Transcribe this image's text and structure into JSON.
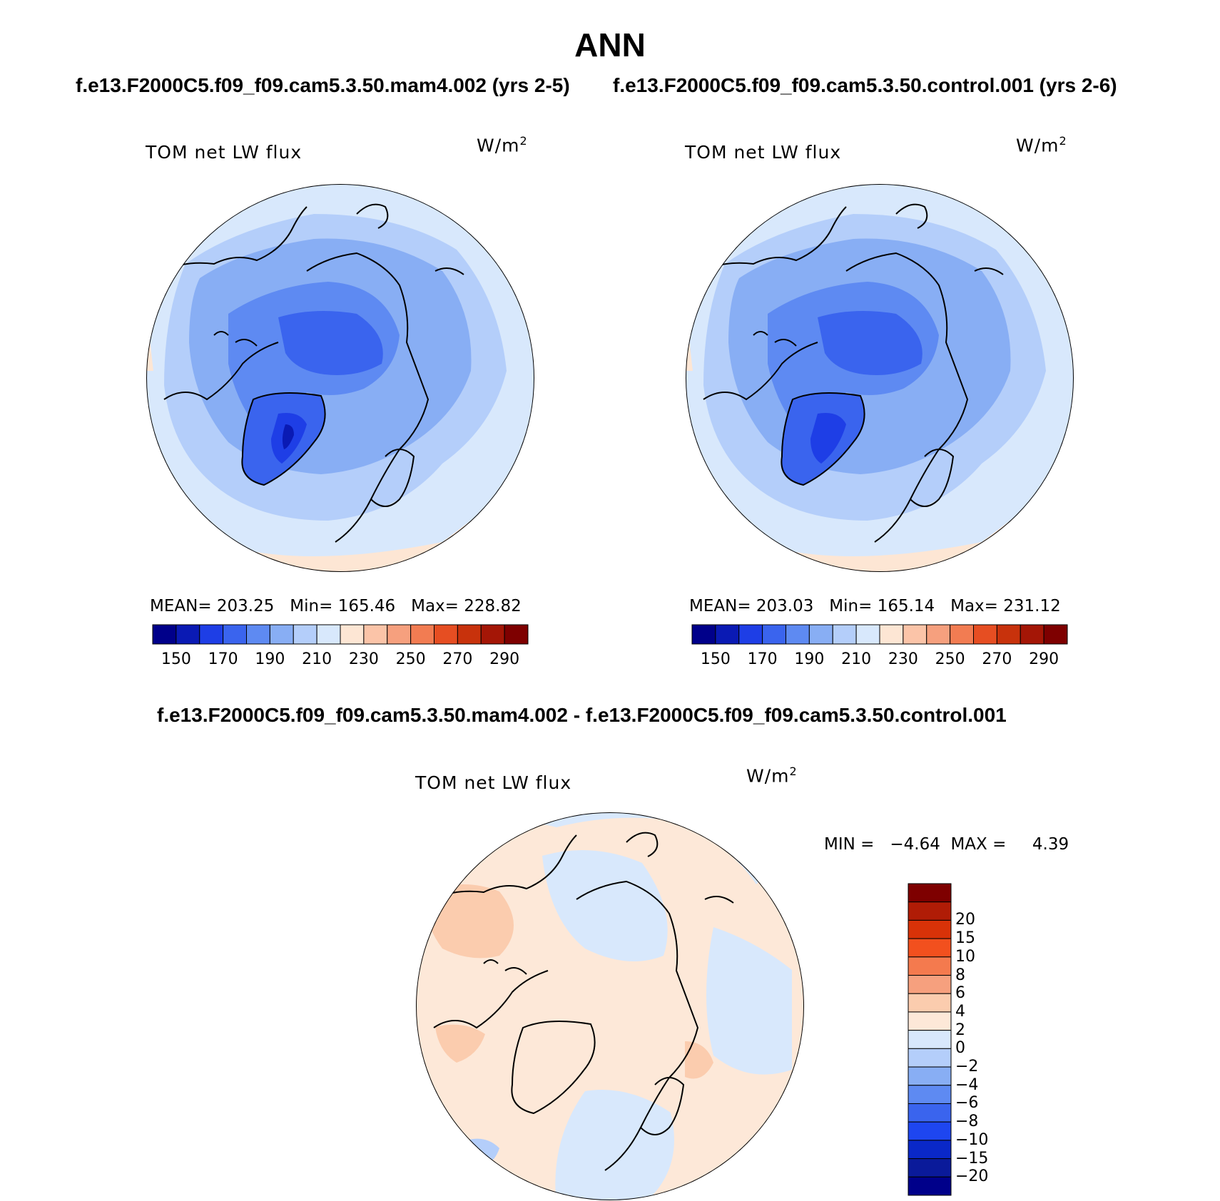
{
  "header": {
    "title": "ANN",
    "subtitle_left": "f.e13.F2000C5.f09_f09.cam5.3.50.mam4.002 (yrs 2-5)",
    "subtitle_right": "f.e13.F2000C5.f09_f09.cam5.3.50.control.001 (yrs 2-6)",
    "diff_title": "f.e13.F2000C5.f09_f09.cam5.3.50.mam4.002 - f.e13.F2000C5.f09_f09.cam5.3.50.control.001"
  },
  "panels": [
    {
      "variable": "TOM net LW flux",
      "units_base": "W/m",
      "units_exp": "2",
      "stats": "MEAN= 203.25   Min= 165.46   Max= 228.82"
    },
    {
      "variable": "TOM net LW flux",
      "units_base": "W/m",
      "units_exp": "2",
      "stats": "MEAN= 203.03   Min= 165.14   Max= 231.12"
    },
    {
      "variable": "TOM net LW flux",
      "units_base": "W/m",
      "units_exp": "2",
      "stats": "MIN =   −4.64  MAX =     4.39"
    }
  ],
  "colorbar_main": {
    "colors": [
      "#00008a",
      "#0a1ab4",
      "#1e3ee6",
      "#3a64ee",
      "#5e8af2",
      "#88aef4",
      "#b4cefa",
      "#d8e8fc",
      "#fde6d4",
      "#fbc4a8",
      "#f6a07e",
      "#f27c52",
      "#e64e22",
      "#c8320c",
      "#a41606",
      "#7e0000"
    ],
    "labels": [
      "150",
      "170",
      "190",
      "210",
      "230",
      "250",
      "270",
      "290"
    ]
  },
  "colorbar_diff": {
    "colors": [
      "#7e0000",
      "#b01c06",
      "#d83208",
      "#f2501e",
      "#f47a4e",
      "#f6a07e",
      "#fbccae",
      "#fde8d8",
      "#d8e8fc",
      "#b4cefa",
      "#88aef4",
      "#5e8af2",
      "#3a64ee",
      "#1e46f0",
      "#0a28c8",
      "#0a1a9a",
      "#00008a"
    ],
    "labels": [
      "20",
      "15",
      "10",
      "8",
      "6",
      "4",
      "2",
      "0",
      "−2",
      "−4",
      "−6",
      "−8",
      "−10",
      "−15",
      "−20"
    ]
  }
}
